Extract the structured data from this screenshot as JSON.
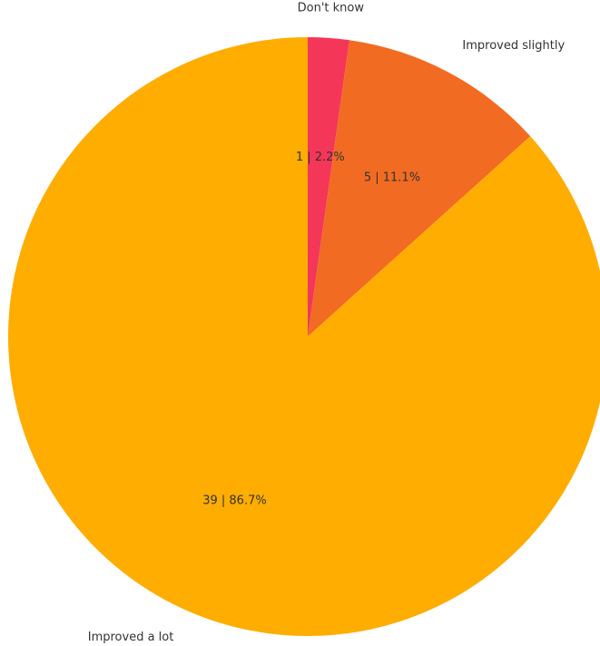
{
  "chart_data": {
    "type": "pie",
    "start_angle_deg": 90,
    "direction": "clockwise",
    "slices": [
      {
        "category": "Don't know",
        "count": 1,
        "percent": 2.2,
        "value_label": "1 | 2.2%",
        "color": "#F43659"
      },
      {
        "category": "Improved slightly",
        "count": 5,
        "percent": 11.1,
        "value_label": "5 | 11.1%",
        "color": "#F26B22"
      },
      {
        "category": "Improved a lot",
        "count": 39,
        "percent": 86.7,
        "value_label": "39 | 86.7%",
        "color": "#FFAD00"
      }
    ]
  }
}
